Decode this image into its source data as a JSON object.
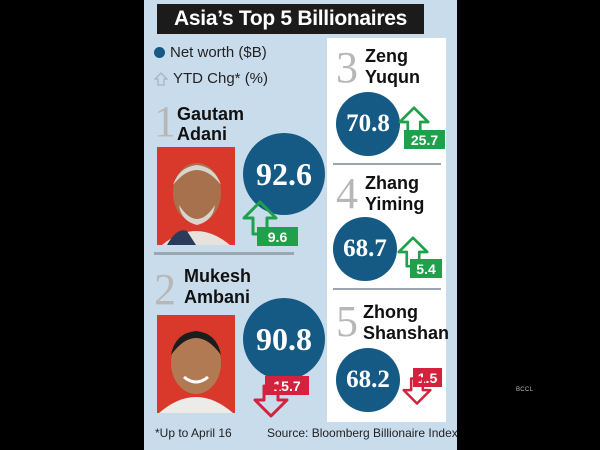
{
  "title": "Asia’s Top 5 Billionaires",
  "legend": {
    "net_worth": "Net worth ($B)",
    "ytd": "YTD Chg* (%)"
  },
  "billionaires": [
    {
      "rank": "1",
      "first": "Gautam",
      "last": "Adani",
      "net_worth": "92.6",
      "ytd": "9.6",
      "direction": "up"
    },
    {
      "rank": "2",
      "first": "Mukesh",
      "last": "Ambani",
      "net_worth": "90.8",
      "ytd": "15.7",
      "direction": "down"
    },
    {
      "rank": "3",
      "first": "Zeng",
      "last": "Yuqun",
      "net_worth": "70.8",
      "ytd": "25.7",
      "direction": "up"
    },
    {
      "rank": "4",
      "first": "Zhang",
      "last": "Yiming",
      "net_worth": "68.7",
      "ytd": "5.4",
      "direction": "up"
    },
    {
      "rank": "5",
      "first": "Zhong",
      "last": "Shanshan",
      "net_worth": "68.2",
      "ytd": "1.5",
      "direction": "down"
    }
  ],
  "footnote": "*Up to April 16",
  "source": "Source: Bloomberg Billionaire Index",
  "watermark": "BCCL",
  "colors": {
    "bubble": "#155a85",
    "up": "#1fa04b",
    "down": "#d3223e",
    "panel": "#c9dcec"
  }
}
